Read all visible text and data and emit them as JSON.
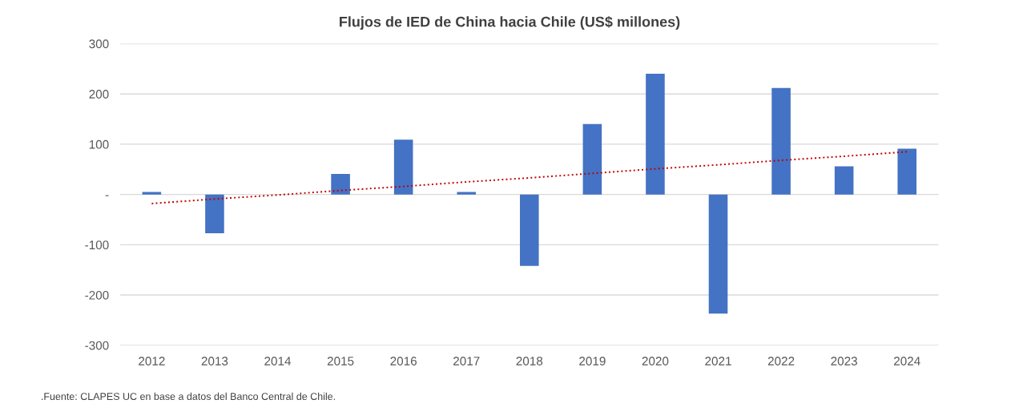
{
  "chart_data": {
    "type": "bar",
    "title": "Flujos de IED de China hacia Chile (US$ millones)",
    "categories": [
      "2012",
      "2013",
      "2014",
      "2015",
      "2016",
      "2017",
      "2018",
      "2019",
      "2020",
      "2021",
      "2022",
      "2023",
      "2024"
    ],
    "series": [
      {
        "color": "#4472c4",
        "values": [
          5,
          -77,
          0,
          41,
          109,
          5,
          -142,
          140,
          240,
          -237,
          212,
          56,
          91
        ]
      },
      {
        "type": "line",
        "color": "#c00000",
        "line_style": "dotted",
        "values": [
          -18,
          -9,
          -1,
          8,
          16,
          25,
          33,
          42,
          51,
          59,
          68,
          76,
          85
        ]
      }
    ],
    "ylim": [
      -300,
      300
    ],
    "yticks": [
      -300,
      -200,
      -100,
      {
        "value": 0,
        "label": "-"
      },
      100,
      200,
      300
    ],
    "grid": "y",
    "legend": false,
    "annotations": [
      ".Fuente: CLAPES UC en base a datos del Banco Central de Chile."
    ]
  }
}
